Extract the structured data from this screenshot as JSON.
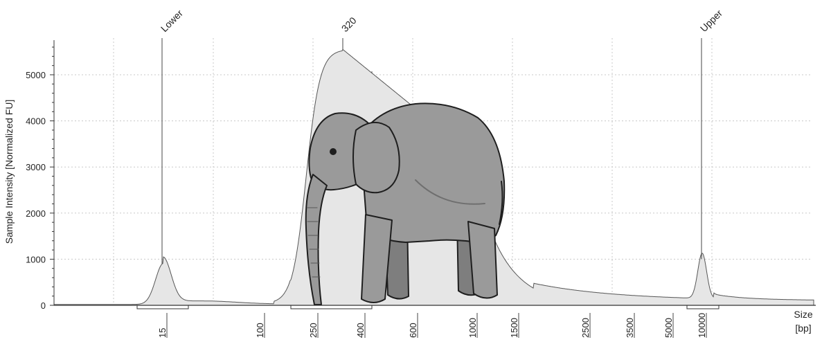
{
  "chart_data": {
    "type": "area",
    "ylabel": "Sample Intensity [Normalized FU]",
    "xlabel_lines": [
      "Size",
      "[bp]"
    ],
    "ylim": [
      0,
      5800
    ],
    "y_ticks": [
      0,
      1000,
      2000,
      3000,
      4000,
      5000
    ],
    "x_ticks": [
      "15",
      "100",
      "250",
      "400",
      "600",
      "1000",
      "1500",
      "2500",
      "3500",
      "5000",
      "10000"
    ],
    "grid": true,
    "peaks": [
      {
        "label": "Lower",
        "size_bp": 15,
        "intensity": 900
      },
      {
        "label": "320",
        "size_bp": 320,
        "intensity": 5550
      },
      {
        "label": "Upper",
        "size_bp": 10000,
        "intensity": 1000
      }
    ],
    "regions": [
      {
        "start": "15",
        "end": "15"
      },
      {
        "start": "250",
        "end": "400"
      },
      {
        "start": "10000",
        "end": "10000"
      }
    ],
    "series": [
      {
        "name": "",
        "x": [
          "15",
          "100",
          "250",
          "320",
          "400",
          "600",
          "1000",
          "1500",
          "2500",
          "3500",
          "5000",
          "10000"
        ],
        "values": [
          900,
          60,
          300,
          5550,
          5000,
          4400,
          3900,
          2000,
          580,
          260,
          120,
          1000
        ]
      }
    ],
    "overlay_image": "elephant"
  },
  "colors": {
    "fill": "#e6e6e6",
    "stroke": "#555555",
    "axis": "#333333",
    "grid": "#c8c8c8",
    "elephant_body": "#9a9a9a",
    "elephant_shade": "#7e7e7e",
    "elephant_outline": "#1e1e1e"
  }
}
